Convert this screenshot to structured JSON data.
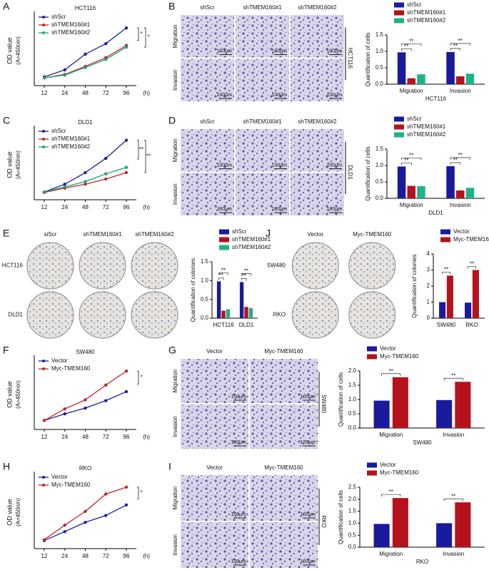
{
  "chart_data": [
    {
      "type": "line",
      "panel": "A",
      "title": "HCT116",
      "ylabel": "OD value",
      "ylabel_unit": "(A=450nm)",
      "xlabel": "(h)",
      "categories": [
        "12",
        "24",
        "48",
        "72",
        "96"
      ],
      "ylim": [
        0,
        2
      ],
      "series": [
        {
          "name": "shScr",
          "color": "#1f1f9a",
          "values": [
            0.25,
            0.45,
            0.9,
            1.2,
            1.65
          ]
        },
        {
          "name": "shTMEM160#1",
          "color": "#c0262b",
          "values": [
            0.22,
            0.32,
            0.55,
            0.8,
            1.15
          ]
        },
        {
          "name": "shTMEM160#2",
          "color": "#1aa37a",
          "values": [
            0.22,
            0.3,
            0.52,
            0.75,
            1.1
          ]
        }
      ],
      "annotations": [
        "*",
        "*"
      ]
    },
    {
      "type": "bar",
      "ylabel": "Quantification of cells",
      "xlabel": "HCT116",
      "categories": [
        "Migration",
        "Invasion"
      ],
      "ylim": [
        0,
        1.5
      ],
      "yticks": [
        {
          "value": 0,
          "label": "0.0"
        },
        {
          "value": 0.5,
          "label": "0.5"
        },
        {
          "value": 1,
          "label": "1.0"
        },
        {
          "value": 1.5,
          "label": "1.5"
        }
      ],
      "series": [
        {
          "name": "shScr",
          "color": "#1a1a9e",
          "values": [
            0.97,
            0.98
          ]
        },
        {
          "name": "shTMEM160#1",
          "color": "#b5121b",
          "values": [
            0.18,
            0.24
          ]
        },
        {
          "name": "shTMEM160#2",
          "color": "#1fb28a",
          "values": [
            0.3,
            0.32
          ]
        }
      ],
      "annotations": [
        "**",
        "**",
        "**",
        "**"
      ]
    },
    {
      "type": "line",
      "panel": "C",
      "title": "DLD1",
      "ylabel": "OD value",
      "ylabel_unit": "(A=450nm)",
      "xlabel": "(h)",
      "categories": [
        "12",
        "24",
        "48",
        "72",
        "96"
      ],
      "ylim": [
        0,
        2.7
      ],
      "series": [
        {
          "name": "shScr",
          "color": "#1f1f9a",
          "values": [
            0.3,
            0.6,
            1.05,
            1.6,
            2.3
          ]
        },
        {
          "name": "shTMEM160#1",
          "color": "#c0262b",
          "values": [
            0.28,
            0.45,
            0.6,
            0.8,
            1.05
          ]
        },
        {
          "name": "shTMEM160#2",
          "color": "#1aa37a",
          "values": [
            0.3,
            0.5,
            0.7,
            1.0,
            1.25
          ]
        }
      ],
      "annotations": [
        "**",
        "**"
      ]
    },
    {
      "type": "bar",
      "ylabel": "Quantification of cells",
      "xlabel": "DLD1",
      "categories": [
        "Migration",
        "Invasion"
      ],
      "ylim": [
        0,
        1.5
      ],
      "yticks": [
        {
          "value": 0,
          "label": "0.0"
        },
        {
          "value": 0.5,
          "label": "0.5"
        },
        {
          "value": 1,
          "label": "1.0"
        },
        {
          "value": 1.5,
          "label": "1.5"
        }
      ],
      "series": [
        {
          "name": "shScr",
          "color": "#1a1a9e",
          "values": [
            0.97,
            0.98
          ]
        },
        {
          "name": "shTMEM160#1",
          "color": "#b5121b",
          "values": [
            0.38,
            0.24
          ]
        },
        {
          "name": "shTMEM160#2",
          "color": "#1fb28a",
          "values": [
            0.37,
            0.32
          ]
        }
      ],
      "annotations": [
        "**",
        "**",
        "**",
        "**"
      ]
    },
    {
      "type": "bar",
      "ylabel": "Quantification of colonies",
      "categories": [
        "HCT116",
        "DLD1"
      ],
      "ylim": [
        0,
        1.5
      ],
      "yticks": [
        {
          "value": 0,
          "label": "0.0"
        },
        {
          "value": 0.5,
          "label": "0.5"
        },
        {
          "value": 1,
          "label": "1.0"
        },
        {
          "value": 1.5,
          "label": "1.5"
        }
      ],
      "series": [
        {
          "name": "shScr",
          "color": "#1a1a9e",
          "values": [
            0.98,
            0.96
          ]
        },
        {
          "name": "shTMEM160#1",
          "color": "#b5121b",
          "values": [
            0.2,
            0.3
          ]
        },
        {
          "name": "shTMEM160#2",
          "color": "#1fb28a",
          "values": [
            0.24,
            0.27
          ]
        }
      ],
      "annotations": [
        "**",
        "**",
        "**",
        "**"
      ]
    },
    {
      "type": "bar",
      "ylabel": "Quantification of colonies",
      "categories": [
        "SW480",
        "RKO"
      ],
      "ylim": [
        0,
        4
      ],
      "yticks": [
        0,
        1,
        2,
        3,
        4
      ],
      "series": [
        {
          "name": "Vector",
          "color": "#1a1a9e",
          "values": [
            1.0,
            0.97
          ]
        },
        {
          "name": "Myc-TMEM160",
          "color": "#b5121b",
          "values": [
            2.65,
            3.0
          ]
        }
      ],
      "annotations": [
        "**",
        "**"
      ]
    },
    {
      "type": "line",
      "panel": "F",
      "title": "SW480",
      "ylabel": "OD value",
      "ylabel_unit": "(A=450nm)",
      "xlabel": "(h)",
      "categories": [
        "12",
        "24",
        "48",
        "72",
        "96"
      ],
      "ylim": [
        0,
        1.7
      ],
      "series": [
        {
          "name": "Vector",
          "color": "#1f1f9a",
          "values": [
            0.22,
            0.38,
            0.52,
            0.7,
            0.92
          ]
        },
        {
          "name": "Myc-TMEM160",
          "color": "#c0262b",
          "values": [
            0.22,
            0.5,
            0.72,
            1.08,
            1.42
          ]
        }
      ],
      "annotations": [
        "*"
      ]
    },
    {
      "type": "bar",
      "ylabel": "Quantification of cells",
      "xlabel": "SW480",
      "categories": [
        "Migration",
        "Invasion"
      ],
      "ylim": [
        0,
        2
      ],
      "yticks": [
        {
          "value": 0,
          "label": "0.0"
        },
        {
          "value": 0.5,
          "label": "0.5"
        },
        {
          "value": 1,
          "label": "1.0"
        },
        {
          "value": 1.5,
          "label": "1.5"
        },
        {
          "value": 2,
          "label": "2.0"
        }
      ],
      "series": [
        {
          "name": "Vector",
          "color": "#1a1a9e",
          "values": [
            0.96,
            0.98
          ]
        },
        {
          "name": "Myc-TMEM160",
          "color": "#b5121b",
          "values": [
            1.78,
            1.62
          ]
        }
      ],
      "annotations": [
        "**",
        "**"
      ]
    },
    {
      "type": "line",
      "panel": "H",
      "title": "RKO",
      "ylabel": "OD value",
      "ylabel_unit": "(A=450nm)",
      "xlabel": "(h)",
      "categories": [
        "12",
        "24",
        "48",
        "72",
        "96"
      ],
      "ylim": [
        0,
        1.8
      ],
      "series": [
        {
          "name": "Vector",
          "color": "#1f1f9a",
          "values": [
            0.2,
            0.42,
            0.65,
            0.82,
            1.08
          ]
        },
        {
          "name": "Myc-TMEM160",
          "color": "#c0262b",
          "values": [
            0.22,
            0.58,
            0.92,
            1.35,
            1.52
          ]
        }
      ],
      "annotations": [
        "*"
      ]
    },
    {
      "type": "bar",
      "ylabel": "Quantification of cells",
      "xlabel": "RKO",
      "categories": [
        "Migration",
        "Invasion"
      ],
      "ylim": [
        0,
        2.5
      ],
      "yticks": [
        {
          "value": 0,
          "label": "0.0"
        },
        {
          "value": 0.5,
          "label": "0.5"
        },
        {
          "value": 1,
          "label": "1.0"
        },
        {
          "value": 1.5,
          "label": "1.5"
        },
        {
          "value": 2,
          "label": "2.0"
        },
        {
          "value": 2.5,
          "label": "2.5"
        }
      ],
      "series": [
        {
          "name": "Vector",
          "color": "#1a1a9e",
          "values": [
            0.97,
            1.0
          ]
        },
        {
          "name": "Myc-TMEM160",
          "color": "#b5121b",
          "values": [
            2.05,
            1.87
          ]
        }
      ],
      "annotations": [
        "**",
        "**"
      ]
    }
  ],
  "image_panels": [
    {
      "panel": "B",
      "columns": [
        "shScr",
        "shTMEM160#1",
        "shTMEM160#2"
      ],
      "rows": [
        "Migration",
        "Invasion"
      ],
      "side": "HCT116",
      "scale": "100μm"
    },
    {
      "panel": "D",
      "columns": [
        "shScr",
        "shTMEM160#1",
        "shTMEM160#2"
      ],
      "rows": [
        "Migration",
        "Invasion"
      ],
      "side": "DLD1",
      "scale": "100μm"
    },
    {
      "panel": "E",
      "columns": [
        "siScr",
        "shTMEM160#1",
        "shTMEM160#2"
      ],
      "rows": [
        "HCT116",
        "DLD1"
      ]
    },
    {
      "panel": "J",
      "columns": [
        "Vector",
        "Myc-TMEM160"
      ],
      "rows": [
        "SW480",
        "RKO"
      ]
    },
    {
      "panel": "G",
      "columns": [
        "Vector",
        "Myc-TMEM160"
      ],
      "rows": [
        "Migration",
        "Invasion"
      ],
      "side": "SW480",
      "scale": "100μm"
    },
    {
      "panel": "I",
      "columns": [
        "Vector",
        "Myc-TMEM160"
      ],
      "rows": [
        "Migration",
        "Invasion"
      ],
      "side": "RKO",
      "scale": "100μm"
    }
  ]
}
